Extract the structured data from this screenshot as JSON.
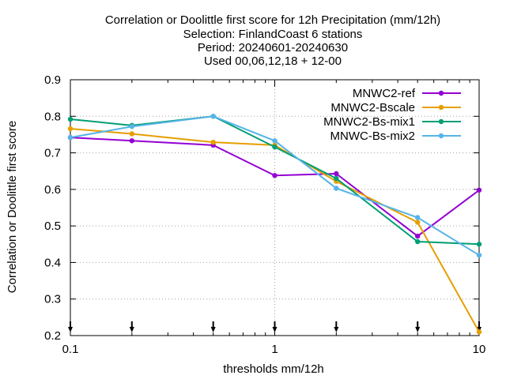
{
  "chart_data": {
    "type": "line",
    "title_lines": [
      "Correlation or Doolittle first score  for 12h Precipitation (mm/12h)",
      "Selection: FinlandCoast      6 stations",
      "Period: 20240601-20240630",
      "Used 00,06,12,18 + 12-00"
    ],
    "xlabel": "thresholds mm/12h",
    "ylabel": "Correlation or Doolittle first score",
    "x_scale": "log",
    "xlim": [
      0.1,
      10
    ],
    "ylim": [
      0.2,
      0.9
    ],
    "x_ticks": [
      0.1,
      1,
      10
    ],
    "x_tick_labels": [
      "0.1",
      "1",
      "10"
    ],
    "y_ticks": [
      0.2,
      0.3,
      0.4,
      0.5,
      0.6,
      0.7,
      0.8,
      0.9
    ],
    "y_tick_labels": [
      "0.2",
      "0.3",
      "0.4",
      "0.5",
      "0.6",
      "0.7",
      "0.8",
      "0.9"
    ],
    "grid": true,
    "legend_position": "top-right",
    "threshold_markers": [
      0.1,
      0.2,
      0.5,
      1,
      2,
      5,
      10
    ],
    "x": [
      0.1,
      0.2,
      0.5,
      1,
      2,
      5,
      10
    ],
    "series": [
      {
        "name": "MNWC2-ref",
        "color": "#9400d3",
        "values": [
          0.742,
          0.733,
          0.721,
          0.638,
          0.643,
          0.472,
          0.598
        ]
      },
      {
        "name": "MNWC2-Bscale",
        "color": "#e69f00",
        "values": [
          0.766,
          0.752,
          0.729,
          0.721,
          0.622,
          0.51,
          0.21
        ]
      },
      {
        "name": "MNWC2-Bs-mix1",
        "color": "#009e73",
        "values": [
          0.792,
          0.775,
          0.8,
          0.716,
          0.63,
          0.457,
          0.45
        ]
      },
      {
        "name": "MNWC-Bs-mix2",
        "color": "#56b4e9",
        "values": [
          0.742,
          0.772,
          0.8,
          0.733,
          0.603,
          0.523,
          0.42
        ]
      }
    ]
  }
}
